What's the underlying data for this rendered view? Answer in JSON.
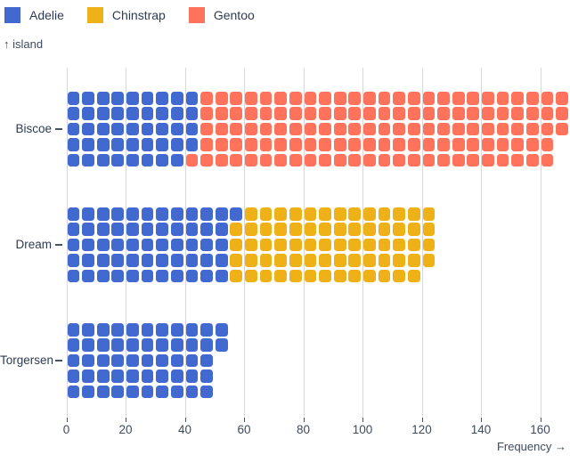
{
  "legend": {
    "items": [
      {
        "label": "Adelie",
        "color": "#4269d0"
      },
      {
        "label": "Chinstrap",
        "color": "#efb118"
      },
      {
        "label": "Gentoo",
        "color": "#ff725c"
      }
    ]
  },
  "axes": {
    "y_label": "↑ island",
    "x_label": "Frequency →",
    "x_ticks": [
      0,
      20,
      40,
      60,
      80,
      100,
      120,
      140,
      160
    ]
  },
  "chart_data": {
    "type": "waffle-bar",
    "orientation": "horizontal",
    "cell_unit": 1,
    "rows_per_band": 5,
    "fill_order": "column-major-top-down",
    "title": "",
    "xlabel": "Frequency",
    "ylabel": "island",
    "categories": [
      "Biscoe",
      "Dream",
      "Torgersen"
    ],
    "series": [
      {
        "name": "Adelie",
        "color": "#4269d0",
        "values": [
          44,
          56,
          52
        ]
      },
      {
        "name": "Chinstrap",
        "color": "#efb118",
        "values": [
          0,
          68,
          0
        ]
      },
      {
        "name": "Gentoo",
        "color": "#ff725c",
        "values": [
          124,
          0,
          0
        ]
      }
    ],
    "totals": [
      168,
      124,
      52
    ],
    "xlim": [
      0,
      170
    ],
    "grid": true,
    "legend_position": "top-left"
  },
  "colors": {
    "grid": "#d9d9d9",
    "tick": "#4a5362",
    "text": "#2e3b52",
    "tick_text": "#3e4a5e",
    "background": "#ffffff"
  }
}
